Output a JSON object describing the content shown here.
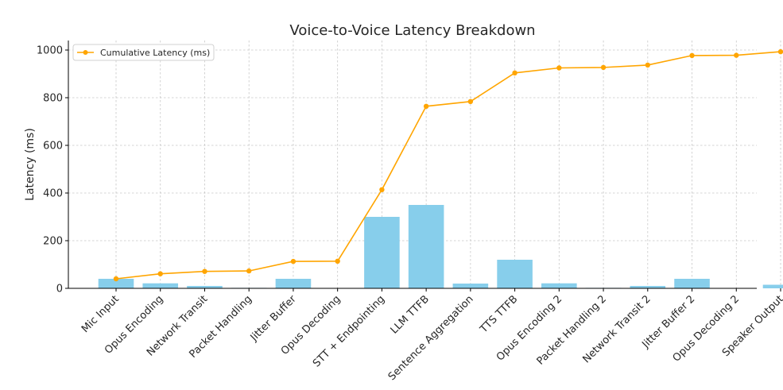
{
  "chart_data": {
    "type": "bar",
    "title": "Voice-to-Voice Latency Breakdown",
    "xlabel": "",
    "ylabel": "Latency (ms)",
    "ylim": [
      0,
      1040
    ],
    "yticks": [
      0,
      200,
      400,
      600,
      800,
      1000
    ],
    "grid": true,
    "legend_position": "top-left",
    "categories": [
      "Mic Input",
      "Opus Encoding",
      "Network Transit",
      "Packet Handling",
      "Jitter Buffer",
      "Opus Decoding",
      "STT + Endpointing",
      "LLM TTFB",
      "Sentence Aggregation",
      "TTS TTFB",
      "Opus Encoding 2",
      "Packet Handling 2",
      "Network Transit 2",
      "Jitter Buffer 2",
      "Opus Decoding 2",
      "Speaker Output"
    ],
    "series": [
      {
        "kind": "bar",
        "color": "#87ceeb",
        "values": [
          40,
          21,
          10,
          2,
          40,
          1,
          300,
          350,
          20,
          120,
          21,
          2,
          10,
          40,
          1,
          15
        ]
      },
      {
        "kind": "line",
        "name": "Cumulative Latency (ms)",
        "color": "#ffa500",
        "values": [
          40,
          61,
          71,
          73,
          113,
          114,
          414,
          764,
          784,
          904,
          925,
          927,
          937,
          977,
          978,
          993
        ]
      }
    ]
  }
}
